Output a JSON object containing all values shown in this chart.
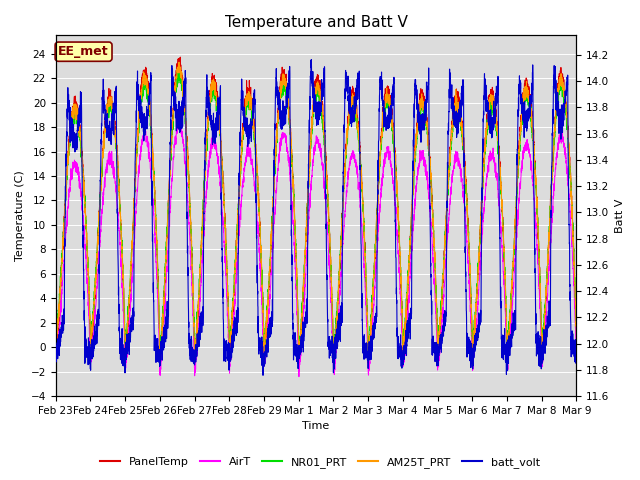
{
  "title": "Temperature and Batt V",
  "ylabel_left": "Temperature (C)",
  "ylabel_right": "Batt V",
  "xlabel": "Time",
  "ylim_left": [
    -4,
    25.5
  ],
  "ylim_right": [
    11.6,
    14.35
  ],
  "yticks_left": [
    -4,
    -2,
    0,
    2,
    4,
    6,
    8,
    10,
    12,
    14,
    16,
    18,
    20,
    22,
    24
  ],
  "yticks_right": [
    11.6,
    11.8,
    12.0,
    12.2,
    12.4,
    12.6,
    12.8,
    13.0,
    13.2,
    13.4,
    13.6,
    13.8,
    14.0,
    14.2
  ],
  "xtick_labels": [
    "Feb 23",
    "Feb 24",
    "Feb 25",
    "Feb 26",
    "Feb 27",
    "Feb 28",
    "Feb 29",
    "Mar 1",
    "Mar 2",
    "Mar 3",
    "Mar 4",
    "Mar 5",
    "Mar 6",
    "Mar 7",
    "Mar 8",
    "Mar 9"
  ],
  "legend_labels": [
    "PanelTemp",
    "AirT",
    "NR01_PRT",
    "AM25T_PRT",
    "batt_volt"
  ],
  "legend_colors": [
    "#dd0000",
    "#ff00ff",
    "#00dd00",
    "#ff9900",
    "#0000cc"
  ],
  "annotation_text": "EE_met",
  "annotation_fg": "#800000",
  "annotation_bg": "#ffffaa",
  "background_color": "#dcdcdc",
  "n_days": 15,
  "pts_per_day": 288,
  "title_fontsize": 11,
  "axis_fontsize": 8,
  "tick_fontsize": 7.5,
  "legend_fontsize": 8
}
